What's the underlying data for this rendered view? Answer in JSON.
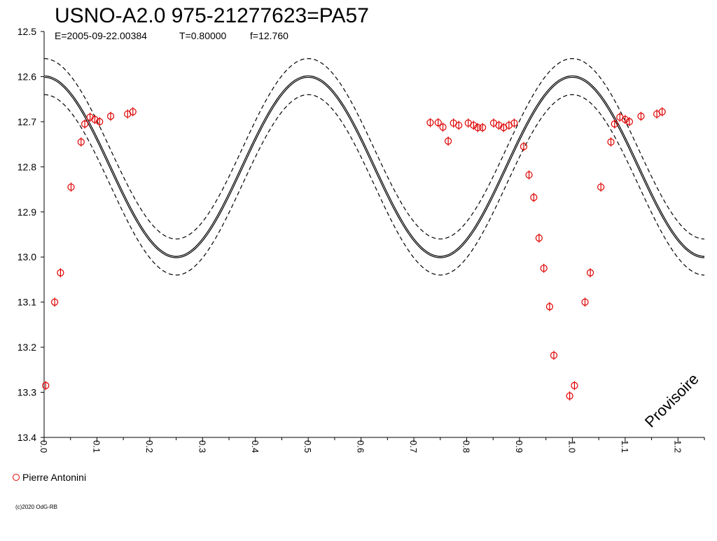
{
  "chart_data": {
    "type": "scatter",
    "title": "USNO-A2.0 975-21277623=PA57",
    "subtitle": {
      "epoch": "E=2005-09-22.00384",
      "period": "T=0.80000",
      "magnitude": "f=12.760"
    },
    "xlabel": "",
    "ylabel": "",
    "xlim": [
      0,
      1.25
    ],
    "ylim": [
      13.4,
      12.5
    ],
    "y_inverted": true,
    "grid": false,
    "x_ticks": [
      "0.0",
      "0.1",
      "0.2",
      "0.3",
      "0.4",
      "0.5",
      "0.6",
      "0.7",
      "0.8",
      "0.9",
      "1.0",
      "1.1",
      "1.2"
    ],
    "y_ticks": [
      "12.5",
      "12.6",
      "12.7",
      "12.8",
      "12.9",
      "13.0",
      "13.1",
      "13.2",
      "13.3",
      "13.4"
    ],
    "model": {
      "description": "double-wave fit",
      "mean_mag": 12.8,
      "amplitude": 0.2,
      "cycles_per_phase": 2,
      "band": 0.04
    },
    "series": [
      {
        "name": "Pierre Antonini",
        "color": "#e00000",
        "marker": "circle-with-bar",
        "points": [
          [
            0.003,
            13.285
          ],
          [
            0.02,
            13.1
          ],
          [
            0.031,
            13.035
          ],
          [
            0.051,
            12.845
          ],
          [
            0.07,
            12.745
          ],
          [
            0.077,
            12.705
          ],
          [
            0.087,
            12.69
          ],
          [
            0.096,
            12.695
          ],
          [
            0.105,
            12.7
          ],
          [
            0.126,
            12.688
          ],
          [
            0.158,
            12.683
          ],
          [
            0.168,
            12.678
          ],
          [
            0.731,
            12.702
          ],
          [
            0.746,
            12.702
          ],
          [
            0.755,
            12.712
          ],
          [
            0.765,
            12.743
          ],
          [
            0.775,
            12.703
          ],
          [
            0.785,
            12.708
          ],
          [
            0.803,
            12.703
          ],
          [
            0.813,
            12.708
          ],
          [
            0.821,
            12.713
          ],
          [
            0.83,
            12.713
          ],
          [
            0.851,
            12.703
          ],
          [
            0.861,
            12.708
          ],
          [
            0.87,
            12.713
          ],
          [
            0.88,
            12.708
          ],
          [
            0.89,
            12.703
          ],
          [
            0.908,
            12.755
          ],
          [
            0.918,
            12.818
          ],
          [
            0.927,
            12.868
          ],
          [
            0.937,
            12.958
          ],
          [
            0.946,
            13.025
          ],
          [
            0.957,
            13.11
          ],
          [
            0.965,
            13.218
          ],
          [
            0.995,
            13.308
          ],
          [
            1.004,
            13.285
          ],
          [
            1.024,
            13.1
          ],
          [
            1.034,
            13.035
          ],
          [
            1.054,
            12.845
          ],
          [
            1.073,
            12.745
          ],
          [
            1.08,
            12.705
          ],
          [
            1.09,
            12.69
          ],
          [
            1.1,
            12.695
          ],
          [
            1.108,
            12.7
          ],
          [
            1.13,
            12.688
          ],
          [
            1.16,
            12.683
          ],
          [
            1.17,
            12.678
          ]
        ]
      }
    ],
    "annotations": [
      "Provisoire"
    ],
    "legend_position": "bottom-left"
  },
  "footer": {
    "copyright": "(c)2020 OdG-RB"
  }
}
